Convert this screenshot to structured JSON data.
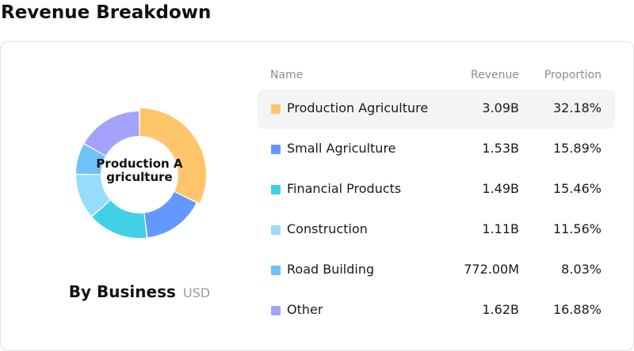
{
  "title": "Revenue Breakdown",
  "chart": {
    "center_label": "Production Agriculture",
    "caption_title": "By Business",
    "caption_unit": "USD"
  },
  "table": {
    "headers": {
      "name": "Name",
      "revenue": "Revenue",
      "proportion": "Proportion"
    },
    "rows": [
      {
        "name": "Production Agriculture",
        "revenue": "3.09B",
        "proportion": "32.18%",
        "color": "#FFC56B"
      },
      {
        "name": "Small Agriculture",
        "revenue": "1.53B",
        "proportion": "15.89%",
        "color": "#6598FF"
      },
      {
        "name": "Financial Products",
        "revenue": "1.49B",
        "proportion": "15.46%",
        "color": "#42D0E6"
      },
      {
        "name": "Construction",
        "revenue": "1.11B",
        "proportion": "11.56%",
        "color": "#98DCFC"
      },
      {
        "name": "Road Building",
        "revenue": "772.00M",
        "proportion": "8.03%",
        "color": "#6EC2FA"
      },
      {
        "name": "Other",
        "revenue": "1.62B",
        "proportion": "16.88%",
        "color": "#A5A2FC"
      }
    ]
  },
  "chart_data": {
    "type": "pie",
    "categories": [
      "Production Agriculture",
      "Small Agriculture",
      "Financial Products",
      "Construction",
      "Road Building",
      "Other"
    ],
    "values": [
      32.18,
      15.89,
      15.46,
      11.56,
      8.03,
      16.88
    ],
    "colors": [
      "#FFC56B",
      "#6598FF",
      "#42D0E6",
      "#98DCFC",
      "#6EC2FA",
      "#A5A2FC"
    ],
    "highlighted": "Production Agriculture"
  }
}
